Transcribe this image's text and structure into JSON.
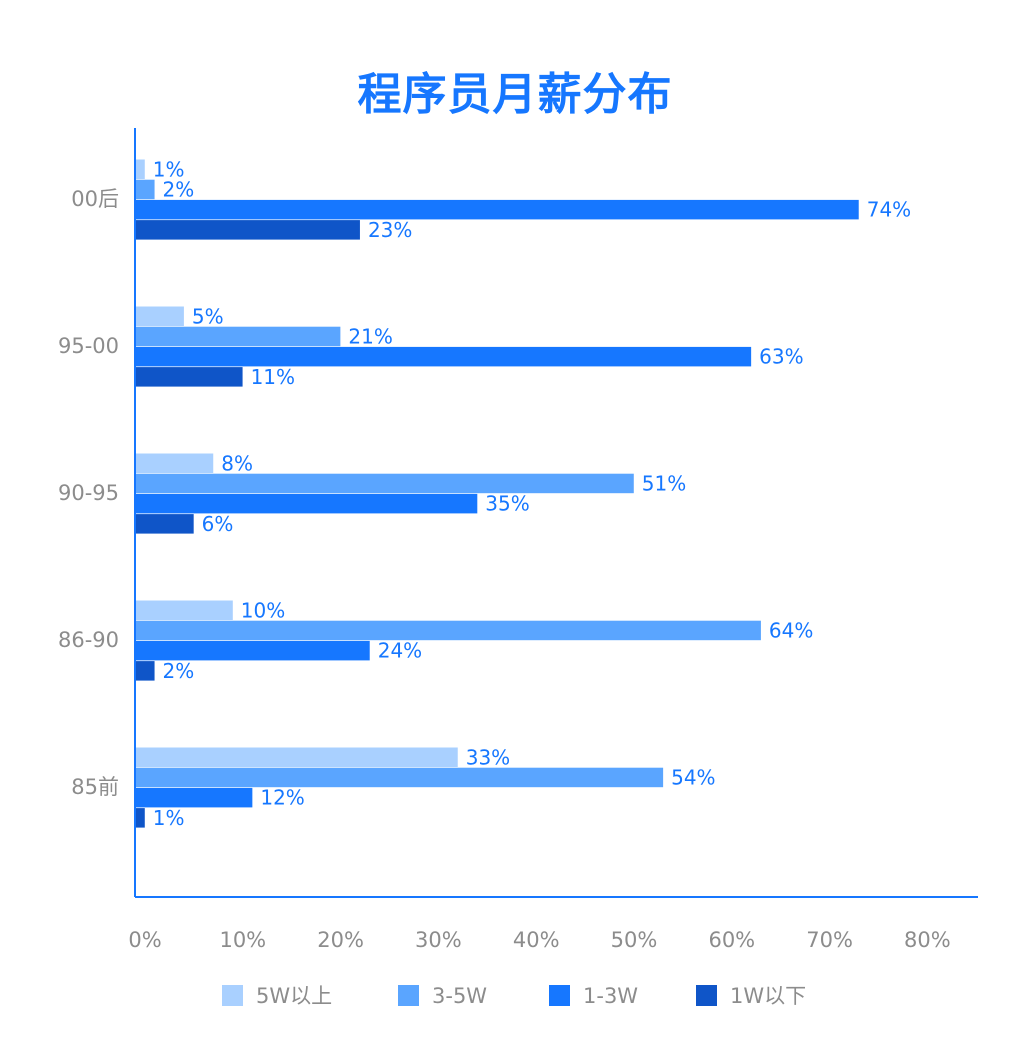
{
  "chart_data": {
    "type": "bar",
    "orientation": "horizontal",
    "title": "程序员月薪分布",
    "categories": [
      "00后",
      "95-00",
      "90-95",
      "86-90",
      "85前"
    ],
    "series": [
      {
        "name": "5W以上",
        "color": "#a9d0ff",
        "values": [
          1,
          5,
          8,
          10,
          33
        ],
        "labels": [
          "1%",
          "5%",
          "8%",
          "10%",
          "33%"
        ]
      },
      {
        "name": "3-5W",
        "color": "#5aa5ff",
        "values": [
          2,
          21,
          51,
          64,
          54
        ],
        "labels": [
          "2%",
          "21%",
          "51%",
          "64%",
          "54%"
        ]
      },
      {
        "name": "1-3W",
        "color": "#1677ff",
        "values": [
          74,
          63,
          35,
          24,
          12
        ],
        "labels": [
          "74%",
          "63%",
          "35%",
          "24%",
          "12%"
        ]
      },
      {
        "name": "1W以下",
        "color": "#0f55c8",
        "values": [
          23,
          11,
          6,
          2,
          1
        ],
        "labels": [
          "23%",
          "11%",
          "6%",
          "2%",
          "1%"
        ]
      }
    ],
    "xlim": [
      0,
      80
    ],
    "xticks": [
      "0%",
      "10%",
      "20%",
      "30%",
      "40%",
      "50%",
      "60%",
      "70%",
      "80%"
    ],
    "grid": false,
    "legend_position": "bottom",
    "axis_color": "#1677ff",
    "label_color": "#1677ff",
    "muted_text_color": "#8c8c8c"
  }
}
